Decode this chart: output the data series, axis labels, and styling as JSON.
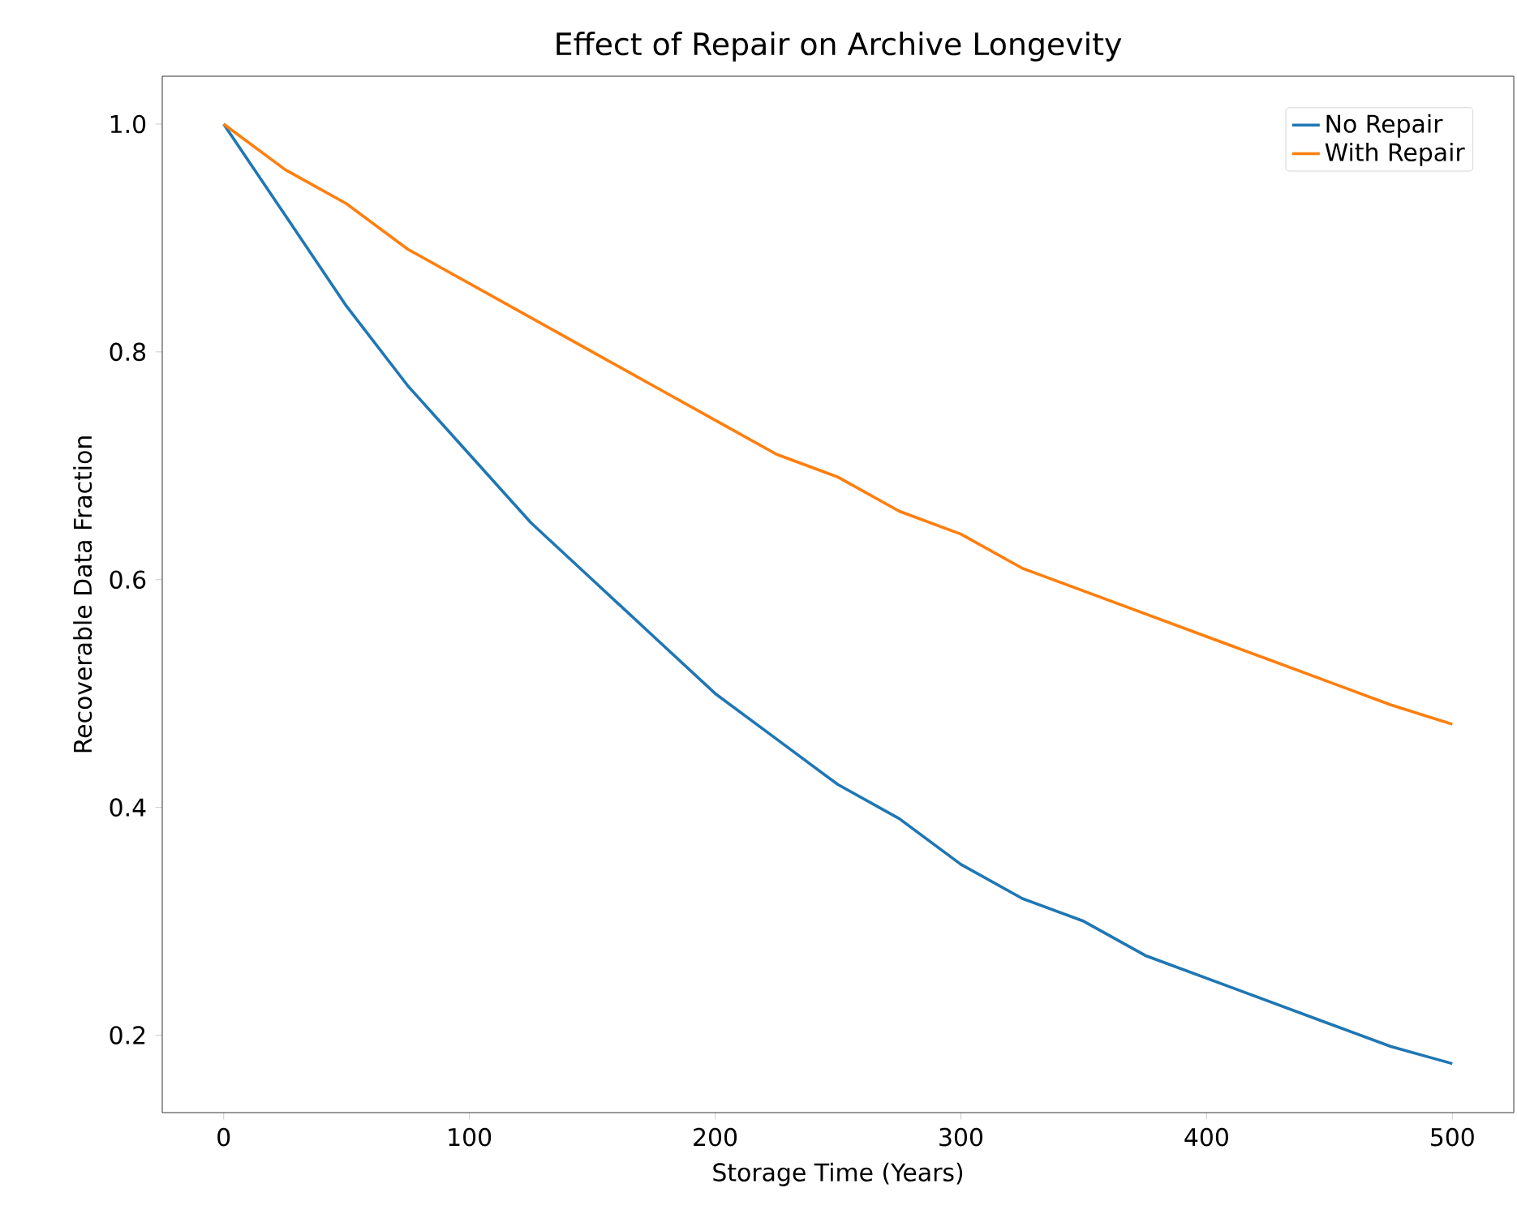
{
  "chart_data": {
    "type": "line",
    "title": "Effect of Repair on Archive Longevity",
    "xlabel": "Storage Time (Years)",
    "ylabel": "Recoverable Data Fraction",
    "x": [
      0,
      25,
      50,
      75,
      100,
      125,
      150,
      175,
      200,
      225,
      250,
      275,
      300,
      325,
      350,
      375,
      400,
      425,
      450,
      475,
      500
    ],
    "series": [
      {
        "name": "No Repair",
        "color": "#1f77b4",
        "values": [
          1.0,
          0.92,
          0.84,
          0.77,
          0.71,
          0.65,
          0.6,
          0.55,
          0.5,
          0.46,
          0.42,
          0.39,
          0.35,
          0.32,
          0.3,
          0.27,
          0.25,
          0.23,
          0.21,
          0.19,
          0.175
        ]
      },
      {
        "name": "With Repair",
        "color": "#ff7f0e",
        "values": [
          1.0,
          0.96,
          0.93,
          0.89,
          0.86,
          0.83,
          0.8,
          0.77,
          0.74,
          0.71,
          0.69,
          0.66,
          0.64,
          0.61,
          0.59,
          0.57,
          0.55,
          0.53,
          0.51,
          0.49,
          0.473
        ]
      }
    ],
    "xlim": [
      -25,
      525
    ],
    "ylim": [
      0.132,
      1.042
    ],
    "xticks": [
      0,
      100,
      200,
      300,
      400,
      500
    ],
    "yticks": [
      {
        "value": 0.2,
        "label": "0.2"
      },
      {
        "value": 0.4,
        "label": "0.4"
      },
      {
        "value": 0.6,
        "label": "0.6"
      },
      {
        "value": 0.8,
        "label": "0.8"
      },
      {
        "value": 1.0,
        "label": "1.0"
      }
    ],
    "grid": false,
    "legend": "top right",
    "marker": "none",
    "line_style": "solid"
  }
}
